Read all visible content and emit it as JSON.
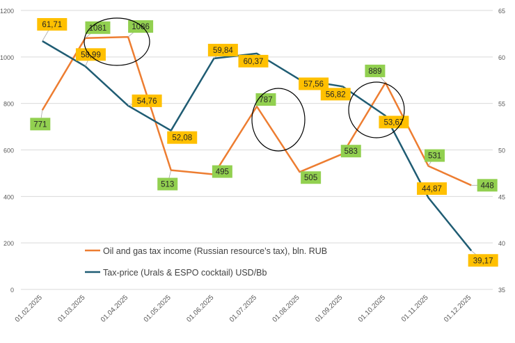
{
  "chart_data": {
    "type": "line",
    "title": "",
    "categories": [
      "01.02.2025",
      "01.03.2025",
      "01.04.2025",
      "01.05.2025",
      "01.06.2025",
      "01.07.2025",
      "01.08.2025",
      "01.09.2025",
      "01.10.2025",
      "01.11.2025",
      "01.12.2025"
    ],
    "y_left": {
      "min": 0,
      "max": 1200,
      "ticks": [
        "0",
        "200",
        "400",
        "600",
        "800",
        "1000",
        "1200"
      ]
    },
    "y_right": {
      "min": 35,
      "max": 65,
      "ticks": [
        "35",
        "40",
        "45",
        "50",
        "55",
        "60",
        "65"
      ]
    },
    "series": [
      {
        "name": "Oil and gas tax income (Russian resource’s tax), bln. RUB",
        "axis": "left",
        "color": "#ED7D31",
        "label_bg": "#92D050",
        "values": [
          771,
          1081,
          1086,
          513,
          495,
          787,
          505,
          583,
          889,
          531,
          448
        ],
        "labels": [
          "771",
          "1081",
          "1086",
          "513",
          "495",
          "787",
          "505",
          "583",
          "889",
          "531",
          "448"
        ]
      },
      {
        "name": "Tax-price (Urals & ESPO cocktail) USD/Bb",
        "axis": "right",
        "color": "#1F5C73",
        "label_bg": "#FFC000",
        "values": [
          61.71,
          58.99,
          54.76,
          52.08,
          59.84,
          60.37,
          57.56,
          56.82,
          53.67,
          44.87,
          39.17
        ],
        "labels": [
          "61,71",
          "58,99",
          "54,76",
          "52,08",
          "59,84",
          "60,37",
          "57,56",
          "56,82",
          "53,67",
          "44,87",
          "39,17"
        ]
      }
    ],
    "highlight_circles": 3,
    "grid": true,
    "legend_position": "inside-bottom-left"
  }
}
